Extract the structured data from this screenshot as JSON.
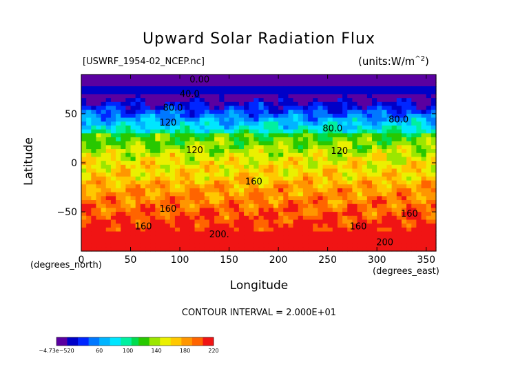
{
  "chart_data": {
    "type": "heatmap",
    "title": "Upward Solar Radiation Flux",
    "subtitle_left": "[USWRF_1954-02_NCEP.nc]",
    "units_text": "(units:W/m",
    "units_sup": "^2",
    "units_close": ")",
    "xlabel": "Longitude",
    "ylabel": "Latitude",
    "x_unit_label": "(degrees_north)",
    "x_unit_label2": "(degrees_east)",
    "xlim": [
      0,
      360
    ],
    "ylim": [
      -90,
      90
    ],
    "x_ticks": [
      "0",
      "50",
      "100",
      "150",
      "200",
      "250",
      "300",
      "350"
    ],
    "x_tick_values": [
      0,
      50,
      100,
      150,
      200,
      250,
      300,
      350
    ],
    "y_ticks": [
      "50",
      "0",
      "−50"
    ],
    "y_tick_values": [
      50,
      0,
      -50
    ],
    "contour_interval": "CONTOUR INTERVAL = 2.000E+01",
    "contour_labels": [
      {
        "text": "0.00",
        "lon": 120,
        "lat": 82
      },
      {
        "text": "40.0",
        "lon": 110,
        "lat": 67
      },
      {
        "text": "80.0",
        "lon": 93,
        "lat": 53
      },
      {
        "text": "80.0",
        "lon": 322,
        "lat": 41
      },
      {
        "text": "80.0",
        "lon": 255,
        "lat": 32
      },
      {
        "text": "120",
        "lon": 88,
        "lat": 38
      },
      {
        "text": "120",
        "lon": 115,
        "lat": 10
      },
      {
        "text": "120",
        "lon": 262,
        "lat": 9
      },
      {
        "text": "160",
        "lon": 175,
        "lat": -22
      },
      {
        "text": "160",
        "lon": 88,
        "lat": -50
      },
      {
        "text": "160",
        "lon": 63,
        "lat": -68
      },
      {
        "text": "160",
        "lon": 333,
        "lat": -55
      },
      {
        "text": "160",
        "lon": 281,
        "lat": -68
      },
      {
        "text": "200.",
        "lon": 140,
        "lat": -76
      },
      {
        "text": "200",
        "lon": 308,
        "lat": -84
      }
    ],
    "colorbar": {
      "tick_labels": [
        "−4.73e−520",
        "60",
        "100",
        "140",
        "180",
        "220"
      ],
      "tick_values": [
        0,
        60,
        100,
        140,
        180,
        220
      ],
      "range": [
        0,
        220
      ]
    },
    "colors": [
      "#5a00a0",
      "#0000c8",
      "#0026ff",
      "#0078ff",
      "#00b4ff",
      "#00e6ff",
      "#00f0a0",
      "#00dc50",
      "#28c800",
      "#9be600",
      "#ebf000",
      "#ffc800",
      "#ff9600",
      "#ff6400",
      "#f01414"
    ]
  }
}
